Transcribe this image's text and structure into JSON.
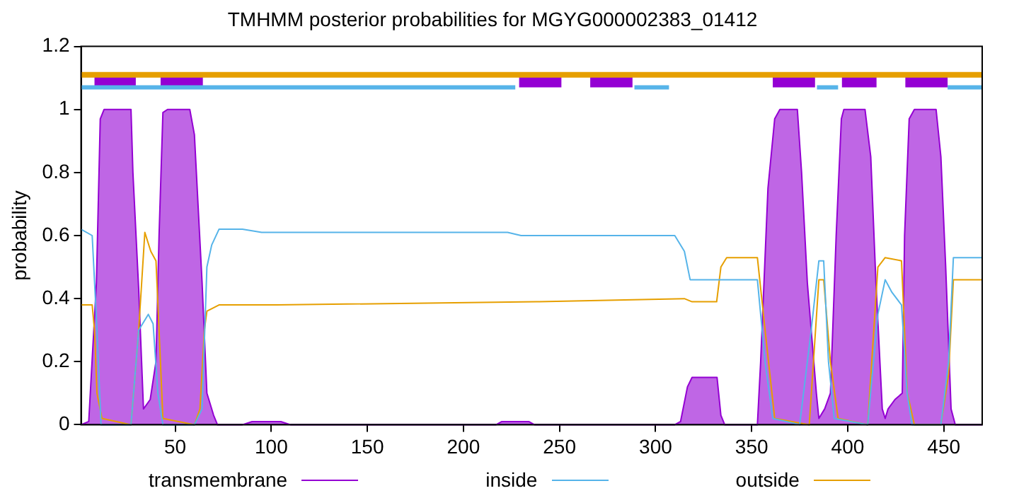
{
  "chart_data": {
    "type": "line",
    "title": "TMHMM posterior probabilities for MGYG000002383_01412",
    "ylabel": "probability",
    "xlim": [
      1,
      470
    ],
    "xticks": [
      50,
      100,
      150,
      200,
      250,
      300,
      350,
      400,
      450
    ],
    "ylim": [
      0,
      1.2
    ],
    "yticks": [
      0,
      0.2,
      0.4,
      0.6,
      0.8,
      1,
      1.2
    ],
    "grid": false,
    "legend": "bottom",
    "marker": "none",
    "line_style": "solid",
    "series": [
      {
        "type": "line",
        "color": "#e69f00",
        "x": [
          1,
          470
        ],
        "values": [
          1.11,
          1.11
        ]
      },
      {
        "type": "line",
        "color": "#56b4e9",
        "x": [
          1,
          227,
          228,
          289,
          307,
          308,
          384,
          395,
          396,
          452,
          470
        ],
        "values": [
          1.07,
          1.07,
          null,
          1.07,
          1.07,
          null,
          1.07,
          1.07,
          null,
          1.07,
          1.07
        ]
      },
      {
        "type": "line",
        "color": "#9400d3",
        "x": [
          8,
          29.5,
          30,
          42.4,
          64.4,
          65,
          229,
          251,
          252,
          266,
          288,
          289,
          361,
          383,
          384,
          397,
          415,
          416,
          430,
          452
        ],
        "values": [
          1.09,
          1.09,
          null,
          1.09,
          1.09,
          null,
          1.09,
          1.09,
          null,
          1.09,
          1.09,
          null,
          1.09,
          1.09,
          null,
          1.09,
          1.09,
          null,
          1.09,
          1.09
        ]
      },
      {
        "type": "area",
        "name": "transmembrane",
        "color": "#9400d3",
        "x": [
          1,
          5,
          9,
          11,
          13,
          27,
          28,
          31,
          33.5,
          37,
          40,
          41.6,
          43.6,
          46,
          57.6,
          60,
          64,
          66.5,
          70,
          72,
          85,
          90,
          105,
          110,
          217,
          220,
          234,
          237,
          310,
          313,
          316.6,
          319,
          332,
          334,
          336,
          353,
          354.7,
          358.5,
          362,
          364.7,
          373.8,
          376,
          379,
          383.7,
          385,
          388,
          391,
          394,
          396.7,
          398,
          409,
          412,
          414.7,
          418,
          419.5,
          421,
          424.6,
          428.4,
          429.6,
          432,
          434.7,
          446,
          448.5,
          451,
          453.8,
          456,
          470
        ],
        "values": [
          0,
          0.01,
          0.45,
          0.97,
          1,
          1,
          0.8,
          0.43,
          0.05,
          0.08,
          0.2,
          0.6,
          0.99,
          1,
          1,
          0.92,
          0.45,
          0.1,
          0.03,
          0,
          0,
          0.01,
          0.01,
          0,
          0,
          0.01,
          0.01,
          0,
          0,
          0.01,
          0.12,
          0.15,
          0.15,
          0.03,
          0,
          0,
          0.2,
          0.75,
          0.97,
          1,
          1,
          0.8,
          0.45,
          0.1,
          0.02,
          0.05,
          0.1,
          0.6,
          0.97,
          1,
          1,
          0.85,
          0.45,
          0.05,
          0.02,
          0.05,
          0.08,
          0.1,
          0.6,
          0.97,
          1,
          1,
          0.85,
          0.5,
          0.05,
          0,
          0
        ]
      },
      {
        "type": "line",
        "name": "inside",
        "color": "#56b4e9",
        "x": [
          1,
          6.8,
          9.3,
          11.4,
          27,
          31,
          36,
          38.5,
          41,
          43.6,
          60,
          64,
          66.5,
          69,
          72.8,
          85,
          95,
          223,
          230,
          310,
          315,
          318,
          353,
          357,
          361,
          375,
          381,
          385,
          387.5,
          390,
          393,
          410.4,
          415.7,
          419.5,
          423,
          428,
          430.9,
          433.5,
          448.5,
          452.5,
          455,
          470
        ],
        "values": [
          0.62,
          0.6,
          0.3,
          0,
          0,
          0.3,
          0.35,
          0.32,
          0.1,
          0,
          0,
          0.05,
          0.5,
          0.57,
          0.62,
          0.62,
          0.61,
          0.61,
          0.6,
          0.6,
          0.55,
          0.46,
          0.46,
          0.2,
          0.02,
          0,
          0.3,
          0.52,
          0.52,
          0.2,
          0.02,
          0,
          0.35,
          0.46,
          0.42,
          0.38,
          0.1,
          0,
          0,
          0.2,
          0.53,
          0.53
        ]
      },
      {
        "type": "line",
        "name": "outside",
        "color": "#e69f00",
        "x": [
          1,
          6.8,
          8,
          9.3,
          11.9,
          27,
          31,
          34.2,
          37.3,
          40,
          41.6,
          43.6,
          60,
          62.9,
          65.2,
          66.5,
          72.8,
          103,
          238,
          315,
          319,
          331.8,
          334,
          337,
          353,
          357,
          362,
          380,
          385,
          387.5,
          391,
          395,
          410.4,
          415.7,
          419.5,
          428,
          431,
          434.7,
          448.5,
          452.5,
          455,
          470
        ],
        "values": [
          0.38,
          0.38,
          0.3,
          0.1,
          0.02,
          0,
          0.3,
          0.61,
          0.55,
          0.52,
          0.3,
          0.02,
          0,
          0.05,
          0.3,
          0.36,
          0.38,
          0.38,
          0.39,
          0.4,
          0.39,
          0.39,
          0.5,
          0.53,
          0.53,
          0.3,
          0.02,
          0,
          0.46,
          0.46,
          0.2,
          0.02,
          0,
          0.5,
          0.53,
          0.52,
          0.1,
          0,
          0,
          0.16,
          0.46,
          0.46
        ]
      }
    ]
  }
}
